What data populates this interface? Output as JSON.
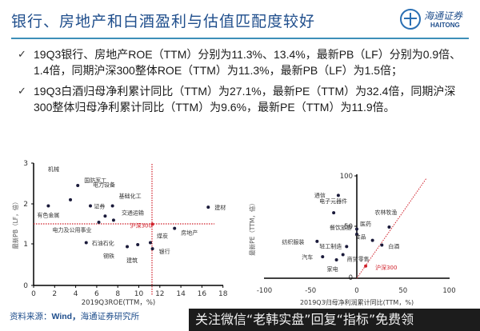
{
  "header": {
    "title": "银行、房地产和白酒盈利与估值匹配度较好",
    "logo_cn": "海通证券",
    "logo_en": "HAITONG"
  },
  "bullets": [
    {
      "icon": "check-icon",
      "text": "19Q3银行、房地产ROE（TTM）分别为11.3%、13.4%，最新PB（LF）分别为0.9倍、1.4倍，同期沪深300整体ROE（TTM）为11.3%，最新PB（LF）为1.5倍；"
    },
    {
      "icon": "check-icon",
      "text": "19Q3白酒归母净利累计同比（TTM）为27.1%，最新PE（TTM）为32.4倍，同期沪深300整体归母净利累计同比（TTM）为9.6%，最新PE（TTM）为11.9倍。"
    }
  ],
  "chart_data": [
    {
      "type": "scatter",
      "title": "",
      "xlabel": "2019Q3ROE(TTM，%)",
      "ylabel": "最新PB（LF，倍）",
      "xlim": [
        0,
        18
      ],
      "ylim": [
        0,
        3
      ],
      "xticks": [
        0,
        2,
        4,
        6,
        8,
        10,
        12,
        14,
        16,
        18
      ],
      "yticks": [
        0,
        1,
        2,
        3
      ],
      "grid": false,
      "reference_lines": {
        "x": 11.3,
        "y": 1.5,
        "label": "沪深300",
        "color": "#d0202a"
      },
      "points": [
        {
          "label": "机械",
          "x": 3.5,
          "y": 2.1
        },
        {
          "label": "国防军工",
          "x": 4.2,
          "y": 2.45
        },
        {
          "label": "有色金属",
          "x": 1.4,
          "y": 1.95
        },
        {
          "label": "电力设备",
          "x": 5.4,
          "y": 1.95
        },
        {
          "label": "基础化工",
          "x": 7.5,
          "y": 1.95
        },
        {
          "label": "证券",
          "x": 6.8,
          "y": 1.7
        },
        {
          "label": "电力及公用事业",
          "x": 6.2,
          "y": 1.55
        },
        {
          "label": "交通运输",
          "x": 7.6,
          "y": 1.6
        },
        {
          "label": "建材",
          "x": 16.6,
          "y": 1.92
        },
        {
          "label": "房地产",
          "x": 13.4,
          "y": 1.4
        },
        {
          "label": "沪深300",
          "x": 11.3,
          "y": 1.5
        },
        {
          "label": "石油石化",
          "x": 5.0,
          "y": 1.05
        },
        {
          "label": "钢铁",
          "x": 8.9,
          "y": 0.95
        },
        {
          "label": "建筑",
          "x": 9.9,
          "y": 1.0
        },
        {
          "label": "煤炭",
          "x": 11.1,
          "y": 1.05
        },
        {
          "label": "银行",
          "x": 11.3,
          "y": 0.9
        }
      ]
    },
    {
      "type": "scatter",
      "title": "",
      "xlabel": "2019Q3归母净利润累计同比(TTM，%)",
      "ylabel": "最新PE（TTM，倍）",
      "xlim": [
        -100,
        100
      ],
      "ylim": [
        0,
        100
      ],
      "xticks": [
        -100,
        -50,
        0,
        50,
        100
      ],
      "yticks": [
        0,
        50,
        100
      ],
      "grid": false,
      "reference_line": {
        "type": "diagonal",
        "from": [
          0,
          0
        ],
        "to": [
          75,
          92
        ],
        "color": "#d0202a"
      },
      "points": [
        {
          "label": "通信",
          "x": -20,
          "y": 81
        },
        {
          "label": "电子元器件",
          "x": -25,
          "y": 64
        },
        {
          "label": "农林牧渔",
          "x": 35,
          "y": 50
        },
        {
          "label": "医药",
          "x": 0,
          "y": 48
        },
        {
          "label": "餐饮旅游",
          "x": 0,
          "y": 43
        },
        {
          "label": "食品",
          "x": 17,
          "y": 37
        },
        {
          "label": "白酒",
          "x": 27.1,
          "y": 32.4
        },
        {
          "label": "纺织服装",
          "x": -43,
          "y": 36
        },
        {
          "label": "轻工制造",
          "x": -11,
          "y": 31
        },
        {
          "label": "汽车",
          "x": -37,
          "y": 21
        },
        {
          "label": "商贸零售",
          "x": -15,
          "y": 23
        },
        {
          "label": "家电",
          "x": -22,
          "y": 18
        },
        {
          "label": "沪深300",
          "x": 9.6,
          "y": 11.9
        }
      ]
    }
  ],
  "left_chart_labels": {
    "y_axis": "最新PB（LF，倍）",
    "x_axis": "2019Q3ROE(TTM，%)"
  },
  "right_chart_labels": {
    "y_axis": "最新PE（TTM，倍）",
    "x_axis": "2019Q3归母净利润累计同比(TTM，%)"
  },
  "footer": {
    "source_prefix": "资料来源：",
    "source_wind": "Wind，",
    "source_rest": "海通证券研究所",
    "watermark": "关注微信“老韩实盘”回复“指标”免费领"
  }
}
